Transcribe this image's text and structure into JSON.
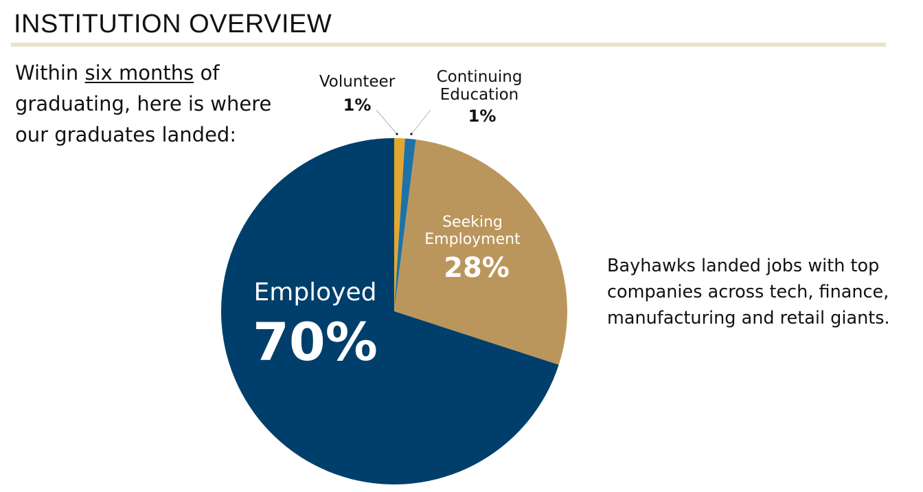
{
  "header": {
    "title": "INSTITUTION OVERVIEW"
  },
  "intro": {
    "before": "Within ",
    "underlined": "six months",
    "after_line1": " of",
    "line2": "graduating, here is where",
    "line3": "our graduates landed:"
  },
  "side_note": {
    "line1": "Bayhawks landed jobs with top",
    "line2": "companies across tech, finance,",
    "line3": "manufacturing and retail giants."
  },
  "labels": {
    "volunteer": {
      "name": "Volunteer",
      "pct": "1%"
    },
    "continuing": {
      "name_line1": "Continuing",
      "name_line2": "Education",
      "pct": "1%"
    },
    "seeking": {
      "name_line1": "Seeking",
      "name_line2": "Employment",
      "pct": "28%"
    },
    "employed": {
      "name": "Employed",
      "pct": "70%"
    }
  },
  "colors": {
    "employed": "#003f6b",
    "seeking": "#bb965c",
    "volunteer": "#e3a731",
    "continuing": "#1f72a8",
    "divider": "#ebe2d0"
  },
  "chart_data": {
    "type": "pie",
    "title": "Where graduates landed within six months of graduating",
    "categories": [
      "Volunteer",
      "Continuing Education",
      "Seeking Employment",
      "Employed"
    ],
    "values": [
      1,
      1,
      28,
      70
    ],
    "unit": "%",
    "start_angle": "12 o'clock, clockwise",
    "colors": [
      "#e3a731",
      "#1f72a8",
      "#bb965c",
      "#003f6b"
    ]
  }
}
